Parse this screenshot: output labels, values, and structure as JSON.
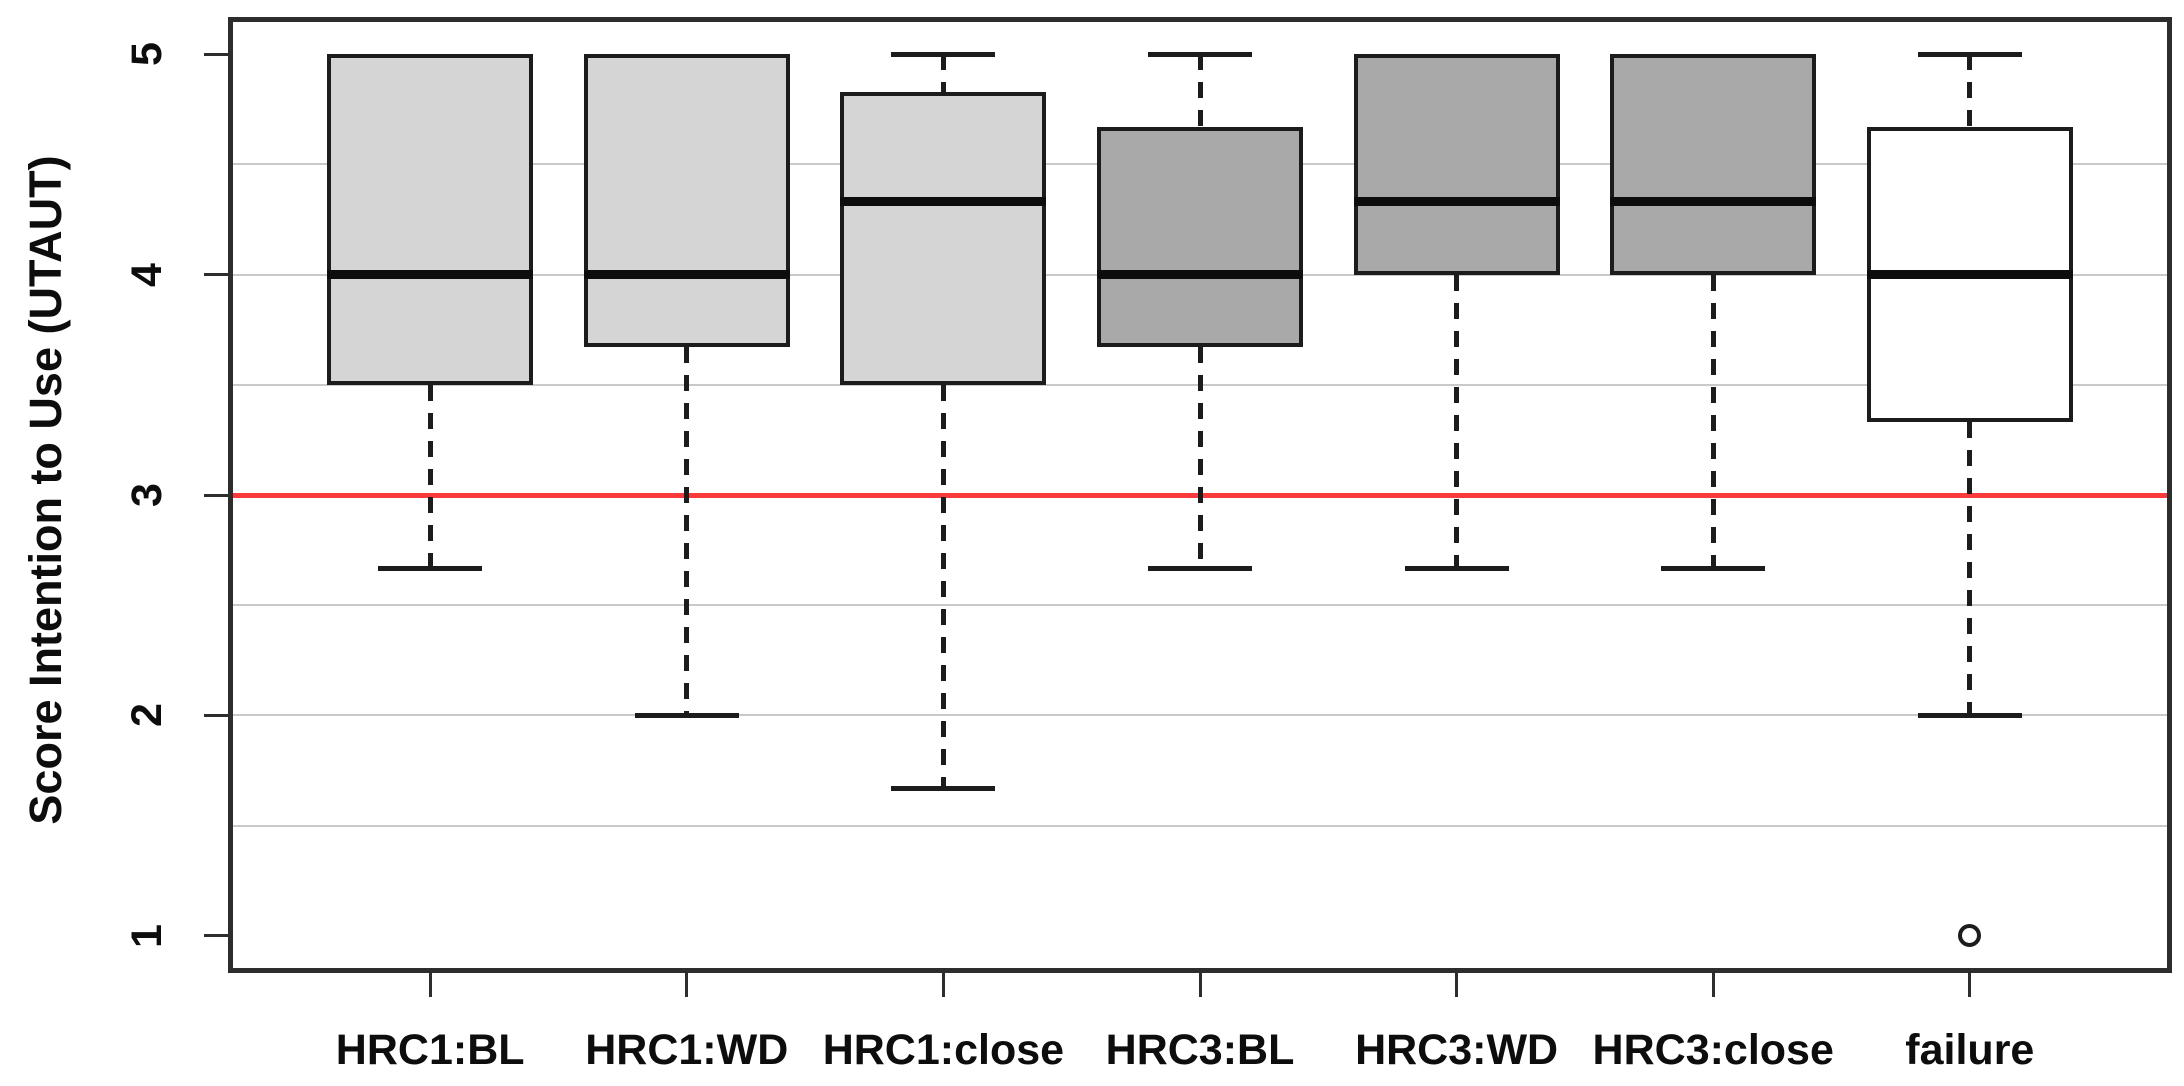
{
  "figure": {
    "ylabel": "Score Intention to Use (UTAUT)",
    "background_color": "#ffffff"
  },
  "colors": {
    "box_border": "#1c1c1c",
    "frame": "#2d2d2d",
    "gridline": "#c9c9c9",
    "reference_line": "#fb3b3b",
    "light_gray_fill": "#d5d5d5",
    "dark_gray_fill": "#a9a9a9",
    "white_fill": "#ffffff",
    "text": "#0d0d0d"
  },
  "chart_data": {
    "type": "boxplot",
    "title": "",
    "xlabel": "",
    "ylabel": "Score Intention to Use (UTAUT)",
    "ylim": [
      1,
      5
    ],
    "y_ticks": [
      1,
      2,
      3,
      4,
      5
    ],
    "gridlines_y": [
      1.5,
      2,
      2.5,
      3.5,
      4,
      4.5
    ],
    "grid": "horizontal",
    "legend": "none",
    "reference_line": {
      "y": 3,
      "color": "#fb3b3b"
    },
    "categories": [
      "HRC1:BL",
      "HRC1:WD",
      "HRC1:close",
      "HRC3:BL",
      "HRC3:WD",
      "HRC3:close",
      "failure"
    ],
    "boxes": [
      {
        "label": "HRC1:BL",
        "whisker_low": 2.67,
        "q1": 3.5,
        "median": 4.0,
        "q3": 5.0,
        "whisker_high": 5.0,
        "outliers": [],
        "fill": "#d5d5d5"
      },
      {
        "label": "HRC1:WD",
        "whisker_low": 2.0,
        "q1": 3.67,
        "median": 4.0,
        "q3": 5.0,
        "whisker_high": 5.0,
        "outliers": [],
        "fill": "#d5d5d5"
      },
      {
        "label": "HRC1:close",
        "whisker_low": 1.67,
        "q1": 3.5,
        "median": 4.33,
        "q3": 4.83,
        "whisker_high": 5.0,
        "outliers": [],
        "fill": "#d5d5d5"
      },
      {
        "label": "HRC3:BL",
        "whisker_low": 2.67,
        "q1": 3.67,
        "median": 4.0,
        "q3": 4.67,
        "whisker_high": 5.0,
        "outliers": [],
        "fill": "#a9a9a9"
      },
      {
        "label": "HRC3:WD",
        "whisker_low": 2.67,
        "q1": 4.0,
        "median": 4.33,
        "q3": 5.0,
        "whisker_high": 5.0,
        "outliers": [],
        "fill": "#a9a9a9"
      },
      {
        "label": "HRC3:close",
        "whisker_low": 2.67,
        "q1": 4.0,
        "median": 4.33,
        "q3": 5.0,
        "whisker_high": 5.0,
        "outliers": [],
        "fill": "#a9a9a9"
      },
      {
        "label": "failure",
        "whisker_low": 2.0,
        "q1": 3.33,
        "median": 4.0,
        "q3": 4.67,
        "whisker_high": 5.0,
        "outliers": [
          1
        ],
        "fill": "#ffffff"
      }
    ]
  }
}
